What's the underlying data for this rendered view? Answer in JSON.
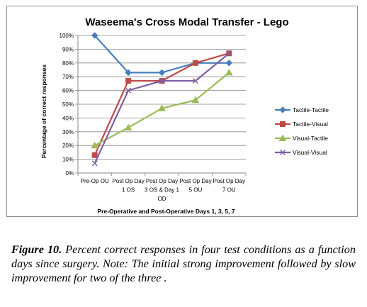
{
  "chart_data": {
    "type": "line",
    "title": "Waseema's Cross Modal Transfer - Lego",
    "xlabel": "Pre-Operative and Post-Operative Days  1, 3, 5, 7",
    "ylabel": "Percentage of correct responses",
    "categories": [
      [
        "Pre-Op OU"
      ],
      [
        "Post Op Day",
        "1 OS"
      ],
      [
        "Post Op Day",
        "3 OS & Day 1",
        "OD"
      ],
      [
        "Post Op Day",
        "5 OU"
      ],
      [
        "Post Op Day",
        "7 OU"
      ]
    ],
    "ylim": [
      0,
      100
    ],
    "yticks": [
      "0%",
      "10%",
      "20%",
      "30%",
      "40%",
      "50%",
      "60%",
      "70%",
      "80%",
      "90%",
      "100%"
    ],
    "grid": true,
    "legend_position": "right",
    "series": [
      {
        "name": "Tactile-Tactile",
        "values": [
          100,
          73,
          73,
          80,
          80
        ],
        "color": "#4a7ebb",
        "marker": "diamond"
      },
      {
        "name": "Tactile-Visual",
        "values": [
          13,
          67,
          67,
          80,
          87
        ],
        "color": "#be4b48",
        "marker": "square"
      },
      {
        "name": "Visual-Tactile",
        "values": [
          20,
          33,
          47,
          53,
          73
        ],
        "color": "#9bbb59",
        "marker": "triangle"
      },
      {
        "name": "Visual-Visual",
        "values": [
          7,
          60,
          67,
          67,
          87
        ],
        "color": "#7d60a0",
        "marker": "x"
      }
    ]
  },
  "caption": {
    "label": "Figure 10.",
    "text": " Percent correct responses in four test conditions as a function days since surgery. Note: The initial strong improvement followed by slow improvement for two of the three ."
  }
}
